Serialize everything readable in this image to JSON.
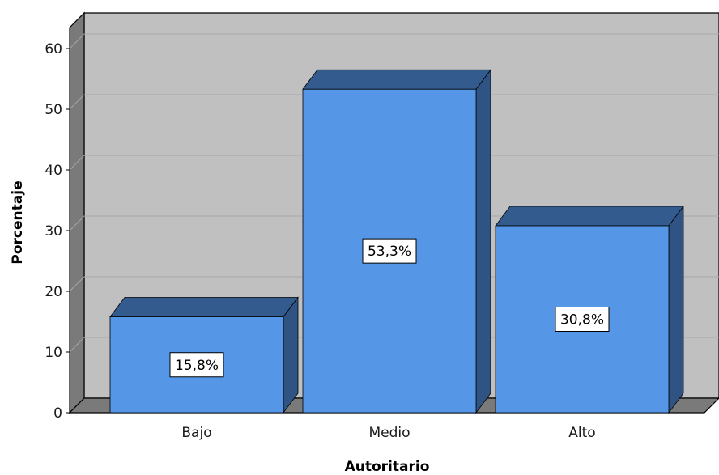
{
  "chart_data": {
    "type": "bar",
    "title": "",
    "xlabel": "Autoritario",
    "ylabel": "Porcentaje",
    "categories": [
      "Bajo",
      "Medio",
      "Alto"
    ],
    "values": [
      15.8,
      53.3,
      30.8
    ],
    "data_labels": [
      "15,8%",
      "53,3%",
      "30,8%"
    ],
    "ylim": [
      0,
      60
    ],
    "yticks": [
      "0",
      "10",
      "20",
      "30",
      "40",
      "50",
      "60"
    ],
    "grid": true,
    "style": "3d-bar",
    "colors": {
      "bar_front": "#5596e6",
      "bar_top": "#335b8d",
      "bar_side": "#2f5483",
      "back_wall": "#c0c0c0",
      "side_wall": "#7a7a7a",
      "floor": "#7a7a7a",
      "gridline": "#a7a7a7"
    }
  }
}
